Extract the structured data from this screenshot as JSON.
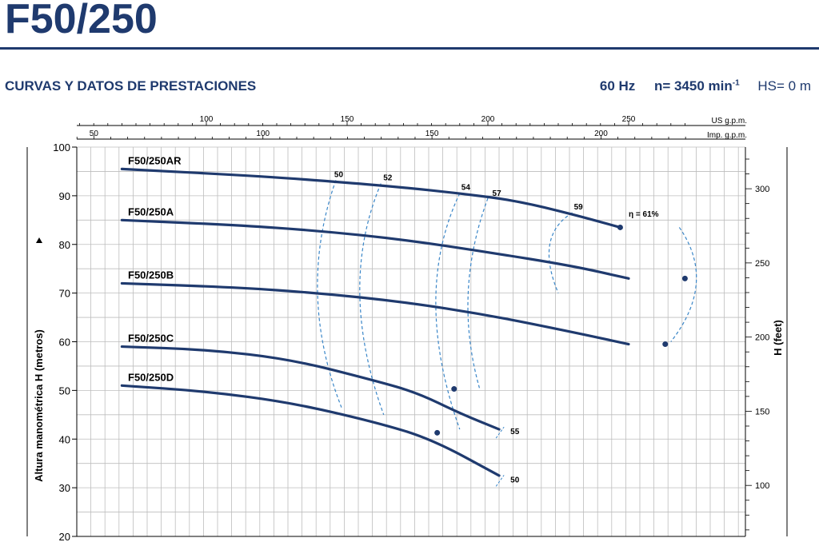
{
  "header": {
    "title": "F50/250",
    "subtitle": "CURVAS Y DATOS DE PRESTACIONES",
    "frequency": "60 Hz",
    "speed_label": "n= 3450 min",
    "speed_exponent": "-1",
    "hs": "HS= 0 m"
  },
  "colors": {
    "brand": "#1f3a6e",
    "curve": "#1f3a6e",
    "efficiency": "#3a86c8",
    "grid": "#999999"
  },
  "chart_data": {
    "type": "line",
    "ylabel": "Altura manométrica H  (metros)",
    "y2label": "H (feet)",
    "ylim": [
      20,
      100
    ],
    "yticks": [
      20,
      30,
      40,
      50,
      60,
      70,
      80,
      90,
      100
    ],
    "y2ticks": [
      100,
      150,
      200,
      250,
      300
    ],
    "top_axis_us": {
      "label": "US g.p.m.",
      "ticks": [
        100,
        150,
        200,
        250
      ]
    },
    "top_axis_imp": {
      "label": "Imp. g.p.m.",
      "ticks": [
        50,
        100,
        150,
        200
      ]
    },
    "series": [
      {
        "name": "F50/250AR",
        "x": [
          70,
          120,
          150,
          170,
          190,
          210,
          230,
          247
        ],
        "y": [
          95.5,
          94,
          92.7,
          91.7,
          90.5,
          89,
          86.2,
          83.5
        ]
      },
      {
        "name": "F50/250A",
        "x": [
          70,
          110,
          140,
          170,
          200,
          230,
          250
        ],
        "y": [
          85,
          84,
          82.8,
          81,
          78.4,
          75.6,
          73
        ]
      },
      {
        "name": "F50/250B",
        "x": [
          70,
          110,
          140,
          170,
          200,
          230,
          250
        ],
        "y": [
          72,
          71.2,
          70,
          68.2,
          65.5,
          62,
          59.5
        ]
      },
      {
        "name": "F50/250C",
        "x": [
          70,
          100,
          130,
          160,
          175,
          190,
          204
        ],
        "y": [
          59,
          58.4,
          56.4,
          52,
          49.5,
          45.3,
          42
        ]
      },
      {
        "name": "F50/250D",
        "x": [
          70,
          100,
          130,
          160,
          180,
          204
        ],
        "y": [
          51,
          49.8,
          47.5,
          43.5,
          40,
          32.5
        ]
      }
    ],
    "efficiency_labels": [
      "50",
      "52",
      "54",
      "57",
      "59",
      "η = 61%"
    ],
    "end_labels": [
      "55",
      "50"
    ]
  }
}
